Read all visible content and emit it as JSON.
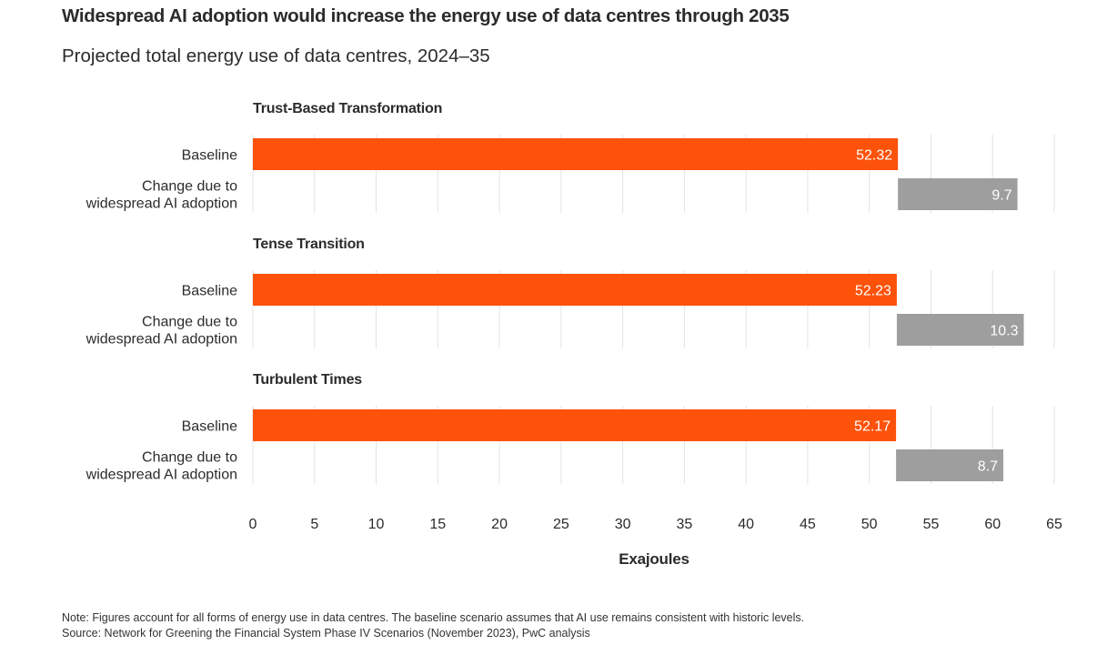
{
  "title": "Widespread AI adoption would increase the energy use of data centres through 2035",
  "subtitle": "Projected total energy use of data centres, 2024–35",
  "colors": {
    "baseline": "#fc520a",
    "change": "#9e9e9e",
    "grid": "#e3e3e3"
  },
  "chart_data": {
    "type": "bar",
    "orientation": "horizontal",
    "stacked": "waterfall",
    "xlabel": "Exajoules",
    "xlim": [
      0,
      65
    ],
    "xticks": [
      0,
      5,
      10,
      15,
      20,
      25,
      30,
      35,
      40,
      45,
      50,
      55,
      60,
      65
    ],
    "grid": true,
    "row_labels": [
      "Baseline",
      "Change due to widespread AI adoption"
    ],
    "groups": [
      {
        "name": "Trust-Based Transformation",
        "baseline": 52.32,
        "change": 9.7,
        "baseline_label": "52.32",
        "change_label": "9.7"
      },
      {
        "name": "Tense Transition",
        "baseline": 52.23,
        "change": 10.3,
        "baseline_label": "52.23",
        "change_label": "10.3"
      },
      {
        "name": "Turbulent Times",
        "baseline": 52.17,
        "change": 8.7,
        "baseline_label": "52.17",
        "change_label": "8.7"
      }
    ]
  },
  "note": "Note: Figures account for all forms of energy use in data centres. The baseline scenario assumes that AI use remains consistent with historic levels.",
  "source": "Source: Network for Greening the Financial System Phase IV Scenarios (November 2023), PwC analysis"
}
